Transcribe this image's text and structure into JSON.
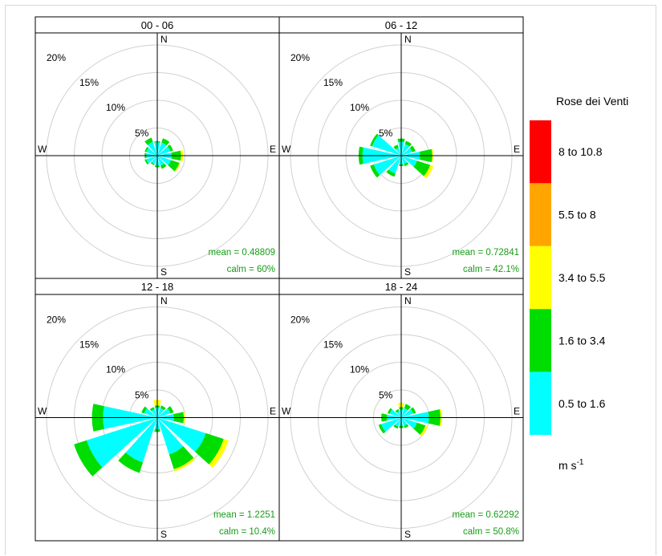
{
  "chart_data": {
    "type": "windrose",
    "title": "",
    "panels": [
      {
        "title": "00 - 06",
        "mean": "mean = 0.48809",
        "calm": "calm = 60%",
        "petals": [
          [
            0,
            [
              2.4,
              0.2
            ]
          ],
          [
            30,
            [
              2.5,
              0.8
            ]
          ],
          [
            60,
            [
              2.5,
              0.5
            ]
          ],
          [
            90,
            [
              2.6,
              1.7,
              0.4
            ]
          ],
          [
            120,
            [
              2.6,
              1.6,
              0.2
            ]
          ],
          [
            150,
            [
              1.9,
              0.6
            ]
          ],
          [
            180,
            [
              1.8,
              0.3
            ]
          ],
          [
            210,
            [
              1.6,
              0.2
            ]
          ],
          [
            240,
            [
              2.1,
              0.3
            ]
          ],
          [
            270,
            [
              2.0,
              0.3
            ]
          ],
          [
            300,
            [
              2.1,
              0.3
            ]
          ],
          [
            330,
            [
              2.6,
              0.8
            ]
          ]
        ]
      },
      {
        "title": "06 - 12",
        "mean": "mean = 0.72841",
        "calm": "calm = 42.1%",
        "petals": [
          [
            0,
            [
              2.5,
              0.6
            ]
          ],
          [
            30,
            [
              2.2,
              0.6
            ]
          ],
          [
            60,
            [
              2.1,
              0.6
            ]
          ],
          [
            90,
            [
              3.4,
              2.2,
              0.2
            ]
          ],
          [
            120,
            [
              3.0,
              2.5,
              0.6
            ]
          ],
          [
            150,
            [
              1.6,
              0.4
            ]
          ],
          [
            180,
            [
              1.6,
              0.3
            ]
          ],
          [
            210,
            [
              3.4,
              0.6
            ]
          ],
          [
            240,
            [
              5.2,
              0.7
            ]
          ],
          [
            270,
            [
              7.0,
              0.7
            ]
          ],
          [
            300,
            [
              5.5,
              0.4
            ]
          ],
          [
            330,
            [
              1.5,
              0.6
            ]
          ]
        ]
      },
      {
        "title": "12 - 18",
        "mean": "mean = 1.2251",
        "calm": "calm = 10.4%",
        "petals": [
          [
            0,
            [
              1.8,
              0.4,
              1.0
            ]
          ],
          [
            30,
            [
              1.8,
              0.5
            ]
          ],
          [
            60,
            [
              2.5,
              0.6
            ]
          ],
          [
            90,
            [
              3.0,
              1.8,
              0.2
            ]
          ],
          [
            120,
            [
              9.2,
              3.4,
              0.9
            ]
          ],
          [
            150,
            [
              7.0,
              2.8,
              0.4
            ]
          ],
          [
            180,
            [
              2.1,
              0.5
            ]
          ],
          [
            210,
            [
              8.5,
              2.0
            ]
          ],
          [
            240,
            [
              13.4,
              2.4
            ]
          ],
          [
            270,
            [
              9.8,
              2.0
            ]
          ],
          [
            300,
            [
              2.5,
              0.5
            ]
          ],
          [
            330,
            [
              1.6,
              0.4
            ]
          ]
        ]
      },
      {
        "title": "18 - 24",
        "mean": "mean = 0.62292",
        "calm": "calm = 50.8%",
        "petals": [
          [
            0,
            [
              1.5,
              0.4,
              0.8
            ]
          ],
          [
            30,
            [
              1.8,
              0.8
            ]
          ],
          [
            60,
            [
              2.3,
              0.5
            ]
          ],
          [
            90,
            [
              5.0,
              2.1,
              0.3
            ]
          ],
          [
            120,
            [
              3.0,
              1.6,
              0.4
            ]
          ],
          [
            150,
            [
              1.6,
              0.4
            ]
          ],
          [
            180,
            [
              1.5,
              0.4
            ]
          ],
          [
            210,
            [
              1.7,
              0.4
            ]
          ],
          [
            240,
            [
              3.8,
              0.5
            ]
          ],
          [
            270,
            [
              2.6,
              1.0
            ]
          ],
          [
            300,
            [
              2.2,
              0.4
            ]
          ],
          [
            330,
            [
              1.2,
              0.4
            ]
          ]
        ]
      }
    ],
    "radial_ticks": [
      "5%",
      "10%",
      "15%",
      "20%"
    ],
    "radial_values": [
      5,
      10,
      15,
      20
    ],
    "directions": [
      "N",
      "E",
      "S",
      "W"
    ],
    "legend": {
      "title": "Rose dei Venti",
      "unit_base": "m s",
      "unit_exp": "-1",
      "bins": [
        {
          "label": "8 to 10.8",
          "color": "#ff0000"
        },
        {
          "label": "5.5 to 8",
          "color": "#ffa500"
        },
        {
          "label": "3.4 to 5.5",
          "color": "#ffff00"
        },
        {
          "label": "1.6 to 3.4",
          "color": "#00dd00"
        },
        {
          "label": "0.5 to 1.6",
          "color": "#00ffff"
        }
      ]
    }
  }
}
